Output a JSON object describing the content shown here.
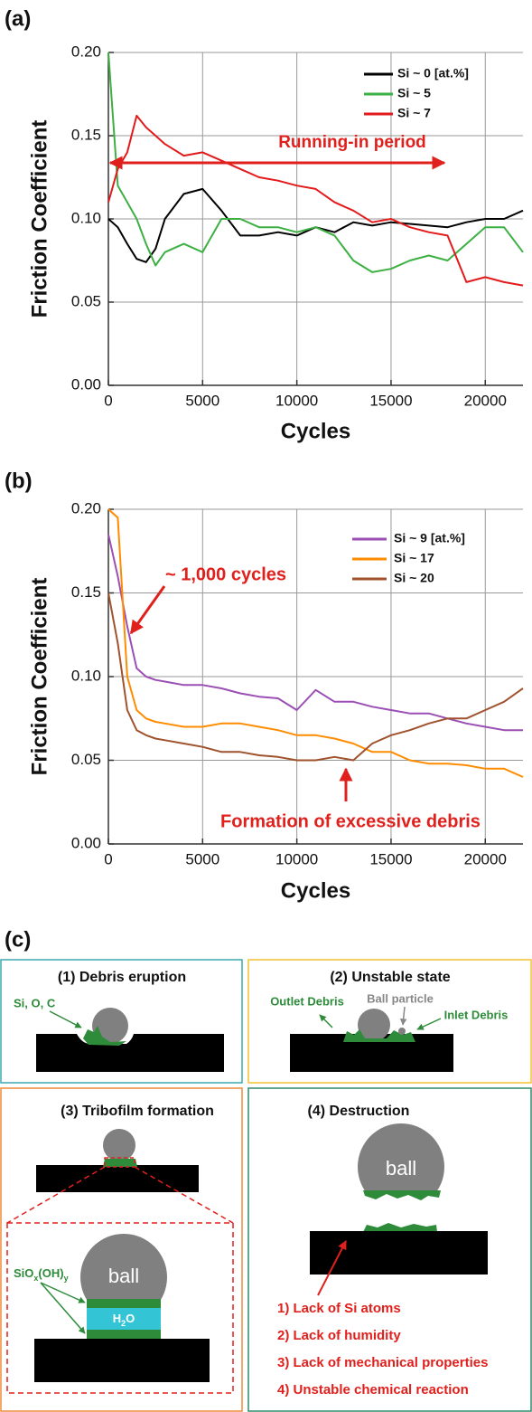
{
  "chart_data": [
    {
      "type": "line",
      "panel_label": "(a)",
      "x_label": "Cycles",
      "y_label": "Friction Coefficient",
      "x": [
        0,
        500,
        1000,
        1500,
        2000,
        2500,
        3000,
        4000,
        5000,
        6000,
        7000,
        8000,
        9000,
        10000,
        11000,
        12000,
        13000,
        14000,
        15000,
        16000,
        17000,
        18000,
        19000,
        20000,
        21000,
        22000
      ],
      "series": [
        {
          "name": "Si ~ 0 [at.%]",
          "color": "#000000",
          "values": [
            0.1,
            0.095,
            0.085,
            0.076,
            0.074,
            0.082,
            0.1,
            0.115,
            0.118,
            0.105,
            0.09,
            0.09,
            0.092,
            0.09,
            0.095,
            0.092,
            0.098,
            0.096,
            0.098,
            0.097,
            0.096,
            0.095,
            0.098,
            0.1,
            0.1,
            0.105
          ]
        },
        {
          "name": "Si ~ 5",
          "color": "#3cb043",
          "values": [
            0.2,
            0.12,
            0.11,
            0.1,
            0.085,
            0.072,
            0.08,
            0.085,
            0.08,
            0.1,
            0.1,
            0.095,
            0.095,
            0.092,
            0.095,
            0.09,
            0.075,
            0.068,
            0.07,
            0.075,
            0.078,
            0.075,
            0.085,
            0.095,
            0.095,
            0.08
          ]
        },
        {
          "name": "Si ~ 7",
          "color": "#e31a1c",
          "values": [
            0.11,
            0.13,
            0.14,
            0.162,
            0.155,
            0.15,
            0.145,
            0.138,
            0.14,
            0.135,
            0.13,
            0.125,
            0.123,
            0.12,
            0.118,
            0.11,
            0.105,
            0.098,
            0.1,
            0.095,
            0.092,
            0.09,
            0.062,
            0.065,
            0.062,
            0.06
          ]
        }
      ],
      "annotations": [
        "Running-in period"
      ],
      "xlim": [
        0,
        22000
      ],
      "ylim": [
        0,
        0.2
      ],
      "xticks": [
        0,
        5000,
        10000,
        15000,
        20000
      ],
      "yticks": [
        {
          "value": 0,
          "label": "0.00"
        },
        0.05,
        {
          "value": 0.1,
          "label": "0.10"
        },
        0.15,
        {
          "value": 0.2,
          "label": "0.20"
        }
      ],
      "grid": true,
      "legend": "upper right"
    },
    {
      "type": "line",
      "panel_label": "(b)",
      "x_label": "Cycles",
      "y_label": "Friction Coefficient",
      "x": [
        0,
        500,
        1000,
        1500,
        2000,
        2500,
        3000,
        4000,
        5000,
        6000,
        7000,
        8000,
        9000,
        10000,
        11000,
        12000,
        13000,
        14000,
        15000,
        16000,
        17000,
        18000,
        19000,
        20000,
        21000,
        22000
      ],
      "series": [
        {
          "name": "Si ~ 9 [at.%]",
          "color": "#9b4fb5",
          "values": [
            0.185,
            0.16,
            0.13,
            0.105,
            0.1,
            0.098,
            0.097,
            0.095,
            0.095,
            0.093,
            0.09,
            0.088,
            0.087,
            0.08,
            0.092,
            0.085,
            0.085,
            0.082,
            0.08,
            0.078,
            0.078,
            0.075,
            0.072,
            0.07,
            0.068,
            0.068
          ]
        },
        {
          "name": "Si ~ 17",
          "color": "#ff8c00",
          "values": [
            0.2,
            0.195,
            0.1,
            0.08,
            0.075,
            0.073,
            0.072,
            0.07,
            0.07,
            0.072,
            0.072,
            0.07,
            0.068,
            0.065,
            0.065,
            0.063,
            0.06,
            0.055,
            0.055,
            0.05,
            0.048,
            0.048,
            0.047,
            0.045,
            0.045,
            0.04
          ]
        },
        {
          "name": "Si ~ 20",
          "color": "#a0522d",
          "values": [
            0.15,
            0.12,
            0.08,
            0.068,
            0.065,
            0.063,
            0.062,
            0.06,
            0.058,
            0.055,
            0.055,
            0.053,
            0.052,
            0.05,
            0.05,
            0.052,
            0.05,
            0.06,
            0.065,
            0.068,
            0.072,
            0.075,
            0.075,
            0.08,
            0.085,
            0.093
          ]
        }
      ],
      "annotations": [
        "~ 1,000 cycles",
        "Formation of excessive debris"
      ],
      "xlim": [
        0,
        22000
      ],
      "ylim": [
        0,
        0.2
      ],
      "xticks": [
        0,
        5000,
        10000,
        15000,
        20000
      ],
      "yticks": [
        {
          "value": 0,
          "label": "0.00"
        },
        0.05,
        {
          "value": 0.1,
          "label": "0.10"
        },
        0.15,
        {
          "value": 0.2,
          "label": "0.20"
        }
      ],
      "grid": true,
      "legend": "upper right"
    }
  ],
  "diagram": {
    "panel_label": "(c)",
    "boxes": [
      {
        "title": "(1) Debris eruption",
        "labels": [
          "Si, O, C"
        ]
      },
      {
        "title": "(2) Unstable state",
        "labels": [
          "Outlet Debris",
          "Ball particle",
          "Inlet Debris"
        ]
      },
      {
        "title": "(3) Tribofilm formation",
        "ball": "ball",
        "water": [
          "H",
          "2",
          "O"
        ],
        "film": [
          "SiO",
          "x",
          "(OH)",
          "y"
        ]
      },
      {
        "title": "(4) Destruction",
        "ball": "ball",
        "causes": [
          "1) Lack of Si atoms",
          "2) Lack of humidity",
          "3) Lack of mechanical properties",
          "4) Unstable chemical reaction"
        ]
      }
    ]
  }
}
